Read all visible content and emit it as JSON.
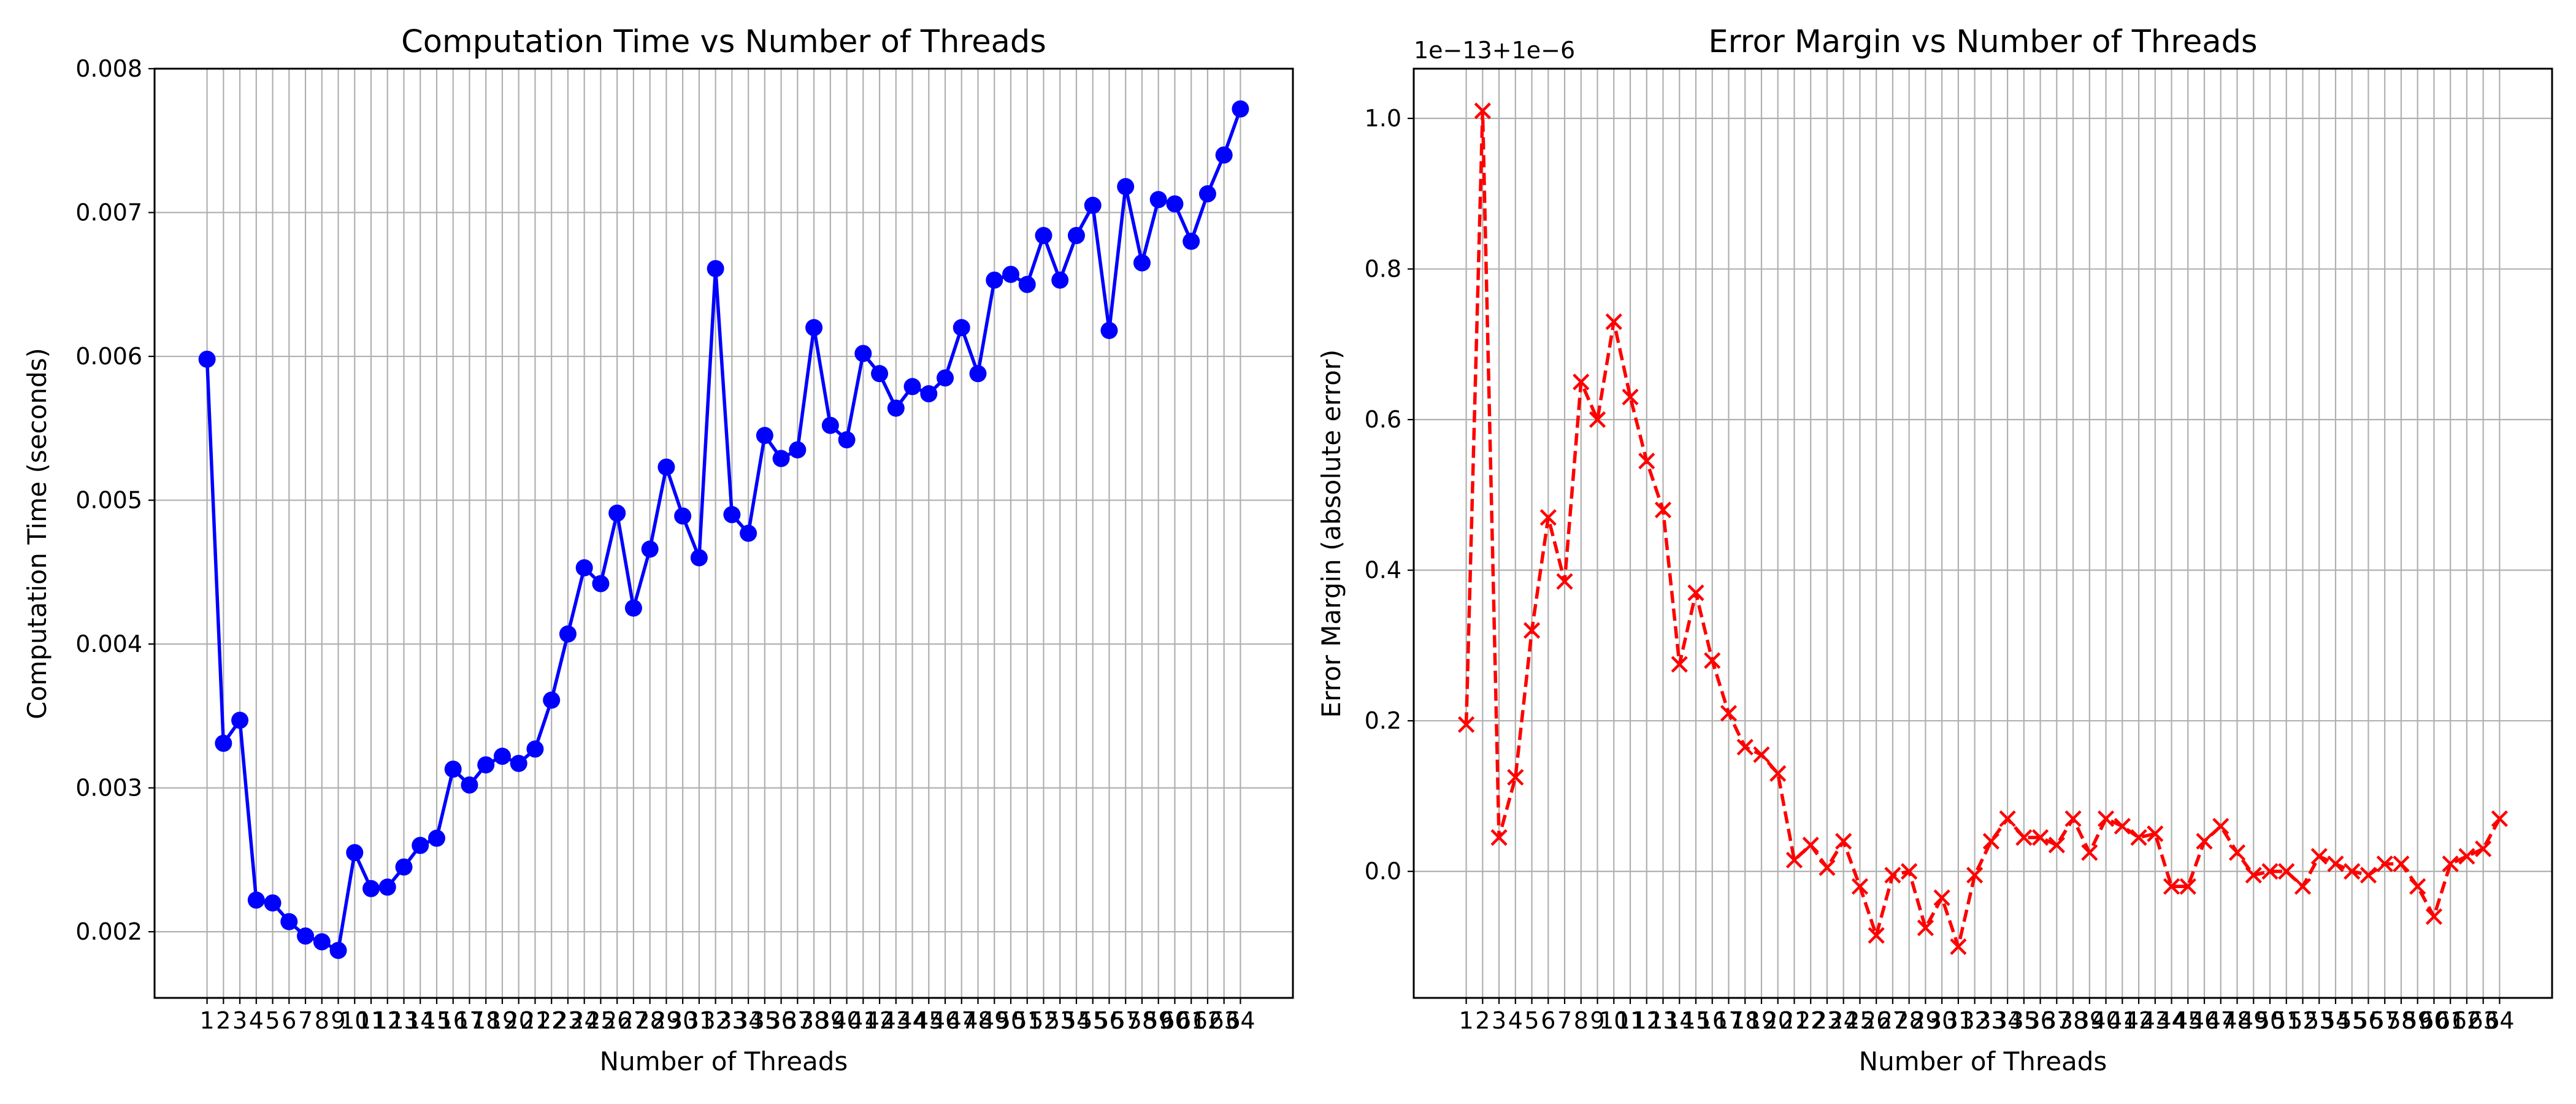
{
  "chart_data": [
    {
      "type": "line",
      "title": "Computation Time vs Number of Threads",
      "xlabel": "Number of Threads",
      "ylabel": "Computation Time (seconds)",
      "marker": "circle",
      "line_style": "solid",
      "color": "#0000ff",
      "grid": true,
      "x": [
        1,
        2,
        3,
        4,
        5,
        6,
        7,
        8,
        9,
        10,
        11,
        12,
        13,
        14,
        15,
        16,
        17,
        18,
        19,
        20,
        21,
        22,
        23,
        24,
        25,
        26,
        27,
        28,
        29,
        30,
        31,
        32,
        33,
        34,
        35,
        36,
        37,
        38,
        39,
        40,
        41,
        42,
        43,
        44,
        45,
        46,
        47,
        48,
        49,
        50,
        51,
        52,
        53,
        54,
        55,
        56,
        57,
        58,
        59,
        60,
        61,
        62,
        63,
        64
      ],
      "x_tick_labels": [
        "1",
        "2",
        "3",
        "4",
        "5",
        "6",
        "7",
        "8",
        "9",
        "10",
        "11",
        "12",
        "13",
        "14",
        "15",
        "16",
        "17",
        "18",
        "19",
        "20",
        "21",
        "22",
        "23",
        "24",
        "25",
        "26",
        "27",
        "28",
        "29",
        "30",
        "31",
        "32",
        "33",
        "34",
        "35",
        "36",
        "37",
        "38",
        "39",
        "40",
        "41",
        "42",
        "43",
        "44",
        "45",
        "46",
        "47",
        "48",
        "49",
        "50",
        "51",
        "52",
        "53",
        "54",
        "55",
        "56",
        "57",
        "58",
        "59",
        "60",
        "61",
        "62",
        "63",
        "64"
      ],
      "y_ticks": [
        0.002,
        0.003,
        0.004,
        0.005,
        0.006,
        0.007,
        0.008
      ],
      "y_tick_labels": [
        "0.002",
        "0.003",
        "0.004",
        "0.005",
        "0.006",
        "0.007",
        "0.008"
      ],
      "ylim": [
        0.00154,
        0.008
      ],
      "series": [
        {
          "values": [
            0.00598,
            0.00331,
            0.00347,
            0.00222,
            0.0022,
            0.00207,
            0.00197,
            0.00193,
            0.00187,
            0.00255,
            0.0023,
            0.00231,
            0.00245,
            0.0026,
            0.00265,
            0.00313,
            0.00302,
            0.00316,
            0.00322,
            0.00317,
            0.00327,
            0.00361,
            0.00407,
            0.00453,
            0.00442,
            0.00491,
            0.00425,
            0.00466,
            0.00523,
            0.00489,
            0.0046,
            0.00661,
            0.0049,
            0.00477,
            0.00545,
            0.00529,
            0.00535,
            0.0062,
            0.00552,
            0.00542,
            0.00602,
            0.00588,
            0.00564,
            0.00579,
            0.00574,
            0.00585,
            0.0062,
            0.00588,
            0.00653,
            0.00657,
            0.0065,
            0.00684,
            0.00653,
            0.00684,
            0.00705,
            0.00618,
            0.00718,
            0.00665,
            0.00709,
            0.00706,
            0.0068,
            0.00713,
            0.0074,
            0.00772
          ]
        }
      ]
    },
    {
      "type": "line",
      "title": "Error Margin vs Number of Threads",
      "xlabel": "Number of Threads",
      "ylabel": "Error Margin (absolute error)",
      "offset_text": "1e−13+1e−6",
      "marker": "x",
      "line_style": "dashed",
      "color": "#ff0000",
      "grid": true,
      "x": [
        1,
        2,
        3,
        4,
        5,
        6,
        7,
        8,
        9,
        10,
        11,
        12,
        13,
        14,
        15,
        16,
        17,
        18,
        19,
        20,
        21,
        22,
        23,
        24,
        25,
        26,
        27,
        28,
        29,
        30,
        31,
        32,
        33,
        34,
        35,
        36,
        37,
        38,
        39,
        40,
        41,
        42,
        43,
        44,
        45,
        46,
        47,
        48,
        49,
        50,
        51,
        52,
        53,
        54,
        55,
        56,
        57,
        58,
        59,
        60,
        61,
        62,
        63,
        64
      ],
      "x_tick_labels": [
        "1",
        "2",
        "3",
        "4",
        "5",
        "6",
        "7",
        "8",
        "9",
        "10",
        "11",
        "12",
        "13",
        "14",
        "15",
        "16",
        "17",
        "18",
        "19",
        "20",
        "21",
        "22",
        "23",
        "24",
        "25",
        "26",
        "27",
        "28",
        "29",
        "30",
        "31",
        "32",
        "33",
        "34",
        "35",
        "36",
        "37",
        "38",
        "39",
        "40",
        "41",
        "42",
        "43",
        "44",
        "45",
        "46",
        "47",
        "48",
        "49",
        "50",
        "51",
        "52",
        "53",
        "54",
        "55",
        "56",
        "57",
        "58",
        "59",
        "60",
        "61",
        "62",
        "63",
        "64"
      ],
      "y_ticks": [
        0.0,
        0.2,
        0.4,
        0.6,
        0.8,
        1.0
      ],
      "y_tick_labels": [
        "0.0",
        "0.2",
        "0.4",
        "0.6",
        "0.8",
        "1.0"
      ],
      "ylim": [
        -0.168,
        1.066
      ],
      "series": [
        {
          "values": [
            0.195,
            1.01,
            0.045,
            0.125,
            0.32,
            0.47,
            0.385,
            0.65,
            0.6,
            0.73,
            0.63,
            0.545,
            0.48,
            0.275,
            0.37,
            0.28,
            0.21,
            0.165,
            0.155,
            0.13,
            0.015,
            0.035,
            0.005,
            0.04,
            -0.02,
            -0.085,
            -0.005,
            0.0,
            -0.075,
            -0.035,
            -0.1,
            -0.005,
            0.04,
            0.07,
            0.045,
            0.045,
            0.035,
            0.07,
            0.025,
            0.07,
            0.06,
            0.045,
            0.05,
            -0.02,
            -0.02,
            0.04,
            0.06,
            0.025,
            -0.005,
            0.0,
            0.0,
            -0.02,
            0.02,
            0.01,
            0.0,
            -0.005,
            0.01,
            0.01,
            -0.02,
            -0.06,
            0.01,
            0.02,
            0.03,
            0.07
          ]
        }
      ]
    }
  ]
}
